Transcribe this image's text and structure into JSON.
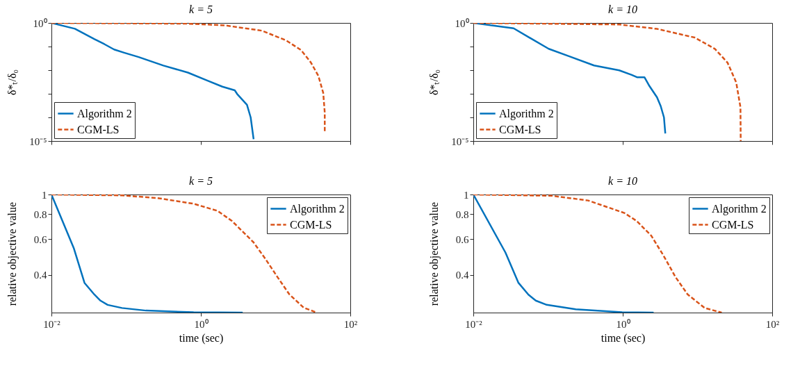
{
  "chart_data": [
    {
      "type": "line",
      "title": "k = 5",
      "ylabel": "δ*ₜ/δ₀",
      "log": "xy",
      "grid": false,
      "legend": "bottom left",
      "tick_labels": "y",
      "xlim": [
        0.01,
        100
      ],
      "xticks": [
        {
          "value": 0.01,
          "label": null
        },
        {
          "value": 1,
          "label": null
        },
        {
          "value": 100,
          "label": null
        }
      ],
      "ylim": [
        1e-05,
        1
      ],
      "yticks": [
        {
          "value": 1e-05,
          "label": "10⁻⁵"
        },
        {
          "value": 0.0001,
          "label": null
        },
        {
          "value": 0.001,
          "label": null
        },
        {
          "value": 0.01,
          "label": null
        },
        {
          "value": 0.1,
          "label": null
        },
        {
          "value": 1,
          "label": "10⁰"
        }
      ],
      "series": [
        {
          "name": "Algorithm 2",
          "color": "#0072bd",
          "line_style": "solid",
          "x": [
            0.01,
            0.0206,
            0.0377,
            0.051,
            0.069,
            0.094,
            0.147,
            0.315,
            0.671,
            1.23,
            1.94,
            2.84,
            3.06,
            4.14,
            4.64,
            5.08
          ],
          "values": [
            1,
            0.566,
            0.204,
            0.127,
            0.075,
            0.055,
            0.036,
            0.0157,
            0.0079,
            0.0036,
            0.002,
            0.0014,
            0.00098,
            0.00034,
            0.0001,
            1.2e-05
          ]
        },
        {
          "name": "CGM-LS",
          "color": "#d95319",
          "line_style": "dashed",
          "x": [
            0.01,
            0.671,
            2.09,
            6.53,
            13.9,
            22,
            29.7,
            37.3,
            43.4,
            45.5,
            45.5
          ],
          "values": [
            1,
            0.93,
            0.79,
            0.47,
            0.181,
            0.07,
            0.021,
            0.0058,
            0.0011,
            0.00016,
            2.2e-05
          ]
        }
      ]
    },
    {
      "type": "line",
      "title": "k = 10",
      "ylabel": "δ*ₜ/δ₀",
      "log": "xy",
      "grid": false,
      "legend": "bottom left",
      "tick_labels": "y",
      "xlim": [
        0.01,
        100
      ],
      "xticks": [
        {
          "value": 0.01,
          "label": null
        },
        {
          "value": 1,
          "label": null
        },
        {
          "value": 100,
          "label": null
        }
      ],
      "ylim": [
        1e-05,
        1
      ],
      "yticks": [
        {
          "value": 1e-05,
          "label": "10⁻⁵"
        },
        {
          "value": 0.0001,
          "label": null
        },
        {
          "value": 0.001,
          "label": null
        },
        {
          "value": 0.01,
          "label": null
        },
        {
          "value": 0.1,
          "label": null
        },
        {
          "value": 1,
          "label": "10⁰"
        }
      ],
      "series": [
        {
          "name": "Algorithm 2",
          "color": "#0072bd",
          "line_style": "solid",
          "x": [
            0.01,
            0.0346,
            0.102,
            0.19,
            0.413,
            0.897,
            1.32,
            1.55,
            1.95,
            2.28,
            2.87,
            3.22,
            3.56,
            3.71
          ],
          "values": [
            1,
            0.59,
            0.08,
            0.039,
            0.0158,
            0.0098,
            0.0063,
            0.005,
            0.005,
            0.0021,
            0.00071,
            0.0003,
            0.0001,
            2.1e-05
          ]
        },
        {
          "name": "CGM-LS",
          "color": "#d95319",
          "line_style": "dashed",
          "x": [
            0.01,
            0.897,
            2.87,
            9.18,
            17.1,
            25.2,
            33,
            37.6,
            37.9
          ],
          "values": [
            1,
            0.86,
            0.56,
            0.24,
            0.08,
            0.021,
            0.003,
            0.00027,
            1e-05
          ]
        }
      ]
    },
    {
      "type": "line",
      "title": "k = 5",
      "xlabel": "time (sec)",
      "ylabel": "relative objective value",
      "log": "xy",
      "grid": false,
      "legend": "top right",
      "xlim": [
        0.01,
        100
      ],
      "xticks": [
        {
          "value": 0.01,
          "label": "10⁻²"
        },
        {
          "value": 1,
          "label": "10⁰"
        },
        {
          "value": 100,
          "label": "10²"
        }
      ],
      "ylim": [
        0.26,
        1
      ],
      "yticks": [
        0.4,
        0.6,
        0.8,
        1
      ],
      "series": [
        {
          "name": "Algorithm 2",
          "color": "#0072bd",
          "line_style": "solid",
          "x": [
            0.01,
            0.02,
            0.0277,
            0.0377,
            0.0453,
            0.0565,
            0.088,
            0.184,
            0.8,
            3.63
          ],
          "values": [
            1,
            0.54,
            0.365,
            0.319,
            0.298,
            0.284,
            0.274,
            0.266,
            0.261,
            0.26
          ]
        },
        {
          "name": "CGM-LS",
          "color": "#d95319",
          "line_style": "dashed",
          "x": [
            0.01,
            0.088,
            0.265,
            0.8,
            1.67,
            2.6,
            5.06,
            7.3,
            10.6,
            15.3,
            23.8,
            35.6
          ],
          "values": [
            1,
            0.99,
            0.96,
            0.9,
            0.83,
            0.74,
            0.58,
            0.48,
            0.39,
            0.32,
            0.275,
            0.26
          ]
        }
      ]
    },
    {
      "type": "line",
      "title": "k = 10",
      "xlabel": "time (sec)",
      "ylabel": "relative objective value",
      "log": "xy",
      "grid": false,
      "legend": "top right",
      "xlim": [
        0.01,
        100
      ],
      "xticks": [
        {
          "value": 0.01,
          "label": "10⁻²"
        },
        {
          "value": 1,
          "label": "10⁰"
        },
        {
          "value": 100,
          "label": "10²"
        }
      ],
      "ylim": [
        0.26,
        1
      ],
      "yticks": [
        0.4,
        0.6,
        0.8,
        1
      ],
      "series": [
        {
          "name": "Algorithm 2",
          "color": "#0072bd",
          "line_style": "solid",
          "x": [
            0.01,
            0.0269,
            0.04,
            0.0547,
            0.0685,
            0.096,
            0.235,
            0.98,
            2.59
          ],
          "values": [
            1,
            0.516,
            0.366,
            0.319,
            0.298,
            0.284,
            0.27,
            0.261,
            0.26
          ]
        },
        {
          "name": "CGM-LS",
          "color": "#d95319",
          "line_style": "dashed",
          "x": [
            0.01,
            0.111,
            0.343,
            1.05,
            1.53,
            2.4,
            3.49,
            5.08,
            7.38,
            12.5,
            21.1
          ],
          "values": [
            1,
            0.986,
            0.934,
            0.81,
            0.74,
            0.626,
            0.5,
            0.39,
            0.32,
            0.274,
            0.26
          ]
        }
      ]
    }
  ]
}
